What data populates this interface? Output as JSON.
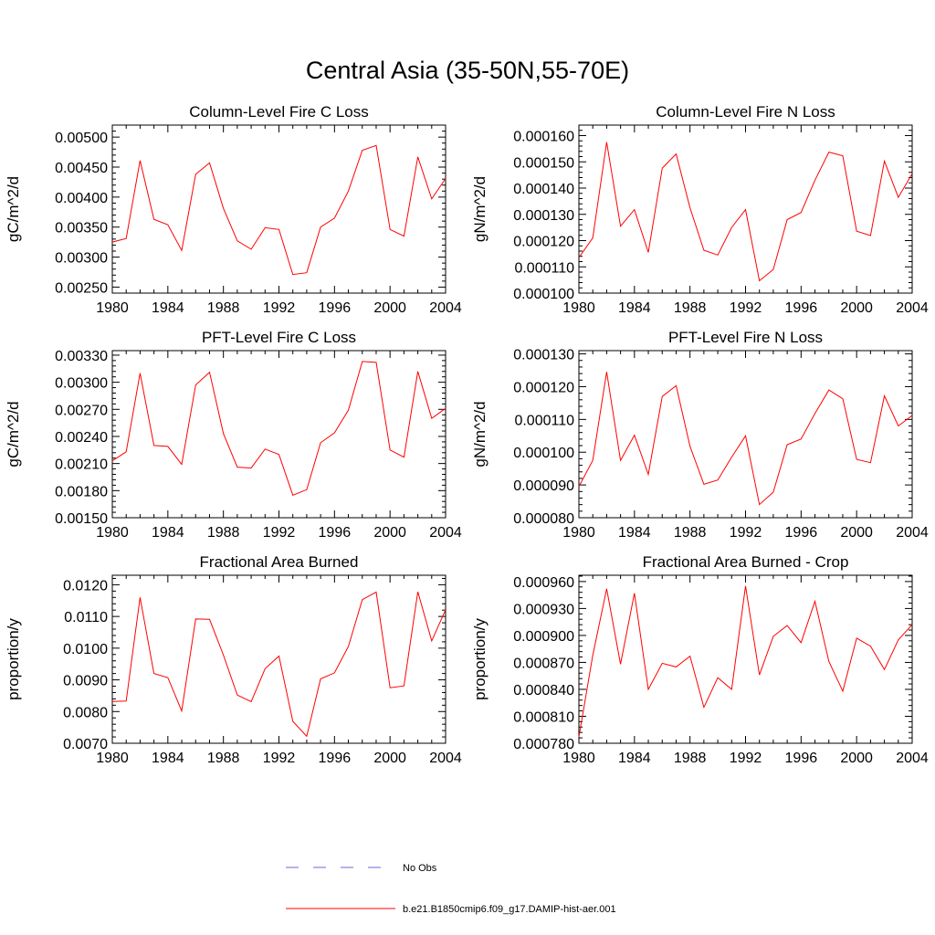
{
  "title": "Central Asia (35-50N,55-70E)",
  "colors": {
    "model": "#ff0000",
    "obs": "#6a6ad8",
    "axis": "#000000"
  },
  "legend": {
    "placement": "bottom",
    "obs_label": "No Obs",
    "model_label": "b.e21.B1850cmip6.f09_g17.DAMIP-hist-aer.001"
  },
  "chart_data": [
    {
      "type": "line",
      "title": "Column-Level Fire C Loss",
      "ylabel": "gC/m^2/d",
      "xlim": [
        1980,
        2004
      ],
      "ylim": [
        0.0024,
        0.0052
      ],
      "x_ticks": [
        "1980",
        "1984",
        "1988",
        "1992",
        "1996",
        "2000",
        "2004"
      ],
      "y_ticks": [
        "0.00250",
        "0.00300",
        "0.00350",
        "0.00400",
        "0.00450",
        "0.00500"
      ],
      "y_tick_values": [
        0.0025,
        0.003,
        0.0035,
        0.004,
        0.0045,
        0.005
      ],
      "series": [
        {
          "name": "b.e21.B1850cmip6.f09_g17.DAMIP-hist-aer.001",
          "x": [
            1980,
            1981,
            1982,
            1983,
            1984,
            1985,
            1986,
            1987,
            1988,
            1989,
            1990,
            1991,
            1992,
            1993,
            1994,
            1995,
            1996,
            1997,
            1998,
            1999,
            2000,
            2001,
            2002,
            2003,
            2004
          ],
          "y": [
            0.00325,
            0.00331,
            0.00461,
            0.00363,
            0.00354,
            0.00311,
            0.00438,
            0.00457,
            0.00381,
            0.00327,
            0.00313,
            0.00349,
            0.00346,
            0.00271,
            0.00274,
            0.0035,
            0.00365,
            0.0041,
            0.00478,
            0.00486,
            0.00346,
            0.00335,
            0.00467,
            0.00397,
            0.00431
          ]
        }
      ]
    },
    {
      "type": "line",
      "title": "Column-Level Fire N Loss",
      "ylabel": "gN/m^2/d",
      "xlim": [
        1980,
        2004
      ],
      "ylim": [
        0.0001,
        0.000164
      ],
      "x_ticks": [
        "1980",
        "1984",
        "1988",
        "1992",
        "1996",
        "2000",
        "2004"
      ],
      "y_ticks": [
        "0.000100",
        "0.000110",
        "0.000120",
        "0.000130",
        "0.000140",
        "0.000150",
        "0.000160"
      ],
      "y_tick_values": [
        0.0001,
        0.00011,
        0.00012,
        0.00013,
        0.00014,
        0.00015,
        0.00016
      ],
      "series": [
        {
          "name": "b.e21.B1850cmip6.f09_g17.DAMIP-hist-aer.001",
          "x": [
            1980,
            1981,
            1982,
            1983,
            1984,
            1985,
            1986,
            1987,
            1988,
            1989,
            1990,
            1991,
            1992,
            1993,
            1994,
            1995,
            1996,
            1997,
            1998,
            1999,
            2000,
            2001,
            2002,
            2003,
            2004
          ],
          "y": [
            0.0001135,
            0.000121,
            0.0001575,
            0.0001255,
            0.0001318,
            0.0001155,
            0.0001476,
            0.000153,
            0.0001325,
            0.0001163,
            0.0001145,
            0.000125,
            0.0001318,
            0.0001047,
            0.000109,
            0.000128,
            0.0001307,
            0.000143,
            0.0001537,
            0.0001523,
            0.0001236,
            0.0001219,
            0.0001503,
            0.0001365,
            0.0001455
          ]
        }
      ]
    },
    {
      "type": "line",
      "title": "PFT-Level Fire C Loss",
      "ylabel": "gC/m^2/d",
      "xlim": [
        1980,
        2004
      ],
      "ylim": [
        0.0015,
        0.00335
      ],
      "x_ticks": [
        "1980",
        "1984",
        "1988",
        "1992",
        "1996",
        "2000",
        "2004"
      ],
      "y_ticks": [
        "0.00150",
        "0.00180",
        "0.00210",
        "0.00240",
        "0.00270",
        "0.00300",
        "0.00330"
      ],
      "y_tick_values": [
        0.0015,
        0.0018,
        0.0021,
        0.0024,
        0.0027,
        0.003,
        0.0033
      ],
      "series": [
        {
          "name": "b.e21.B1850cmip6.f09_g17.DAMIP-hist-aer.001",
          "x": [
            1980,
            1981,
            1982,
            1983,
            1984,
            1985,
            1986,
            1987,
            1988,
            1989,
            1990,
            1991,
            1992,
            1993,
            1994,
            1995,
            1996,
            1997,
            1998,
            1999,
            2000,
            2001,
            2002,
            2003,
            2004
          ],
          "y": [
            0.00213,
            0.00223,
            0.0031,
            0.0023,
            0.00229,
            0.00209,
            0.00297,
            0.00311,
            0.00243,
            0.00206,
            0.00205,
            0.00226,
            0.0022,
            0.00175,
            0.00181,
            0.00233,
            0.00244,
            0.00269,
            0.00323,
            0.00322,
            0.00225,
            0.00217,
            0.00312,
            0.0026,
            0.00271
          ]
        }
      ]
    },
    {
      "type": "line",
      "title": "PFT-Level Fire N Loss",
      "ylabel": "gN/m^2/d",
      "xlim": [
        1980,
        2004
      ],
      "ylim": [
        8e-05,
        0.000131
      ],
      "x_ticks": [
        "1980",
        "1984",
        "1988",
        "1992",
        "1996",
        "2000",
        "2004"
      ],
      "y_ticks": [
        "0.000080",
        "0.000090",
        "0.000100",
        "0.000110",
        "0.000120",
        "0.000130"
      ],
      "y_tick_values": [
        8e-05,
        9e-05,
        0.0001,
        0.00011,
        0.00012,
        0.00013
      ],
      "series": [
        {
          "name": "b.e21.B1850cmip6.f09_g17.DAMIP-hist-aer.001",
          "x": [
            1980,
            1981,
            1982,
            1983,
            1984,
            1985,
            1986,
            1987,
            1988,
            1989,
            1990,
            1991,
            1992,
            1993,
            1994,
            1995,
            1996,
            1997,
            1998,
            1999,
            2000,
            2001,
            2002,
            2003,
            2004
          ],
          "y": [
            8.95e-05,
            9.75e-05,
            0.0001245,
            9.75e-05,
            0.0001052,
            9.32e-05,
            0.000117,
            0.0001203,
            0.0001018,
            9.02e-05,
            9.15e-05,
            9.85e-05,
            0.000105,
            8.4e-05,
            8.78e-05,
            0.0001023,
            0.000104,
            0.0001118,
            0.000119,
            0.0001163,
            9.78e-05,
            9.68e-05,
            0.0001172,
            0.000108,
            0.0001112
          ]
        }
      ]
    },
    {
      "type": "line",
      "title": "Fractional Area Burned",
      "ylabel": "proportion/y",
      "xlim": [
        1980,
        2004
      ],
      "ylim": [
        0.007,
        0.0123
      ],
      "x_ticks": [
        "1980",
        "1984",
        "1988",
        "1992",
        "1996",
        "2000",
        "2004"
      ],
      "y_ticks": [
        "0.0070",
        "0.0080",
        "0.0090",
        "0.0100",
        "0.0110",
        "0.0120"
      ],
      "y_tick_values": [
        0.007,
        0.008,
        0.009,
        0.01,
        0.011,
        0.012
      ],
      "series": [
        {
          "name": "b.e21.B1850cmip6.f09_g17.DAMIP-hist-aer.001",
          "x": [
            1980,
            1981,
            1982,
            1983,
            1984,
            1985,
            1986,
            1987,
            1988,
            1989,
            1990,
            1991,
            1992,
            1993,
            1994,
            1995,
            1996,
            1997,
            1998,
            1999,
            2000,
            2001,
            2002,
            2003,
            2004
          ],
          "y": [
            0.00832,
            0.00833,
            0.0116,
            0.0092,
            0.00907,
            0.00802,
            0.01092,
            0.01091,
            0.00978,
            0.00852,
            0.00831,
            0.00935,
            0.00975,
            0.00769,
            0.00722,
            0.00903,
            0.00922,
            0.01005,
            0.01153,
            0.01177,
            0.00875,
            0.00881,
            0.01178,
            0.01023,
            0.01121
          ]
        }
      ]
    },
    {
      "type": "line",
      "title": "Fractional Area Burned - Crop",
      "ylabel": "proportion/y",
      "xlim": [
        1980,
        2004
      ],
      "ylim": [
        0.00078,
        0.000967
      ],
      "x_ticks": [
        "1980",
        "1984",
        "1988",
        "1992",
        "1996",
        "2000",
        "2004"
      ],
      "y_ticks": [
        "0.000780",
        "0.000810",
        "0.000840",
        "0.000870",
        "0.000900",
        "0.000930",
        "0.000960"
      ],
      "y_tick_values": [
        0.00078,
        0.00081,
        0.00084,
        0.00087,
        0.0009,
        0.00093,
        0.00096
      ],
      "series": [
        {
          "name": "b.e21.B1850cmip6.f09_g17.DAMIP-hist-aer.001",
          "x": [
            1980,
            1981,
            1982,
            1983,
            1984,
            1985,
            1986,
            1987,
            1988,
            1989,
            1990,
            1991,
            1992,
            1993,
            1994,
            1995,
            1996,
            1997,
            1998,
            1999,
            2000,
            2001,
            2002,
            2003,
            2004
          ],
          "y": [
            0.000787,
            0.000878,
            0.000952,
            0.000868,
            0.000947,
            0.00084,
            0.000869,
            0.000865,
            0.000877,
            0.00082,
            0.000853,
            0.00084,
            0.000955,
            0.000856,
            0.000899,
            0.000911,
            0.000892,
            0.000938,
            0.000871,
            0.000838,
            0.000897,
            0.000888,
            0.000862,
            0.000895,
            0.000912
          ]
        }
      ]
    }
  ]
}
